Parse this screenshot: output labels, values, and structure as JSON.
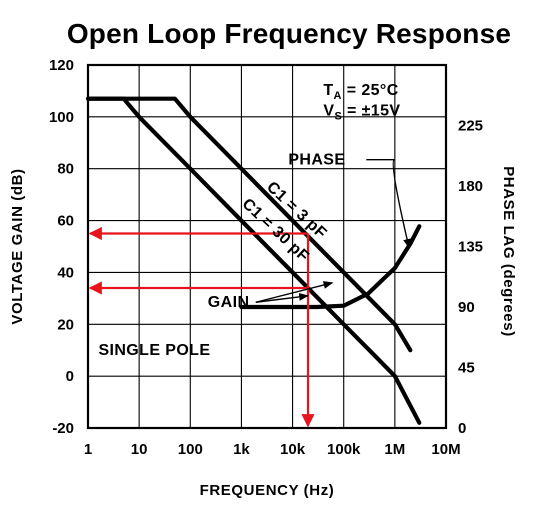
{
  "chart_data": {
    "type": "line",
    "title": "Open Loop Frequency Response",
    "xlabel": "FREQUENCY (Hz)",
    "ylabel": "VOLTAGE GAIN (dB)",
    "y2label": "PHASE LAG (degrees)",
    "x_scale": "log",
    "xlim": [
      1,
      10000000
    ],
    "ylim": [
      -20,
      120
    ],
    "y2lim": [
      0,
      270
    ],
    "grid": true,
    "x_ticks": [
      {
        "value": 1,
        "label": "1"
      },
      {
        "value": 10,
        "label": "10"
      },
      {
        "value": 100,
        "label": "100"
      },
      {
        "value": 1000,
        "label": "1k"
      },
      {
        "value": 10000,
        "label": "10k"
      },
      {
        "value": 100000,
        "label": "100k"
      },
      {
        "value": 1000000,
        "label": "1M"
      },
      {
        "value": 10000000,
        "label": "10M"
      }
    ],
    "y_ticks": [
      {
        "value": 120,
        "label": "120"
      },
      {
        "value": 100,
        "label": "100"
      },
      {
        "value": 80,
        "label": "80"
      },
      {
        "value": 60,
        "label": "60"
      },
      {
        "value": 40,
        "label": "40"
      },
      {
        "value": 20,
        "label": "20"
      },
      {
        "value": 0,
        "label": "0"
      },
      {
        "value": -20,
        "label": "-20"
      }
    ],
    "y2_ticks": [
      {
        "value": 225,
        "label": "225"
      },
      {
        "value": 180,
        "label": "180"
      },
      {
        "value": 135,
        "label": "135"
      },
      {
        "value": 90,
        "label": "90"
      },
      {
        "value": 45,
        "label": "45"
      },
      {
        "value": 0,
        "label": "0"
      }
    ],
    "conditions": {
      "ta_label": "T",
      "ta_sub": "A",
      "ta_value": " = 25°C",
      "vs_label": "V",
      "vs_sub": "S",
      "vs_value": " = ±15V"
    },
    "series": [
      {
        "name": "C1 = 3 pF",
        "axis": "left",
        "x": [
          1,
          50,
          100,
          1000,
          10000,
          100000,
          1000000,
          2000000
        ],
        "y": [
          107,
          107,
          100,
          80,
          60,
          40,
          20,
          10
        ]
      },
      {
        "name": "C1 = 30 pF",
        "axis": "left",
        "x": [
          1,
          5,
          10,
          100,
          1000,
          10000,
          100000,
          1000000,
          3000000
        ],
        "y": [
          107,
          107,
          100,
          80,
          60,
          40,
          20,
          0,
          -18
        ]
      },
      {
        "name": "PHASE",
        "axis": "right",
        "x": [
          1000,
          10000,
          30000,
          100000,
          300000,
          1000000,
          2000000,
          3000000
        ],
        "y": [
          90,
          90,
          90,
          91,
          100,
          119,
          137,
          150
        ]
      }
    ],
    "annotations": [
      {
        "text": "PHASE",
        "points_to_series": "PHASE"
      },
      {
        "text": "GAIN",
        "points_to_series": [
          "C1 = 3 pF",
          "C1 = 30 pF"
        ]
      },
      {
        "text": "SINGLE POLE"
      }
    ],
    "markers": {
      "color": "#e8141c",
      "frequency": 20000,
      "gain_levels": [
        55,
        34
      ]
    }
  }
}
